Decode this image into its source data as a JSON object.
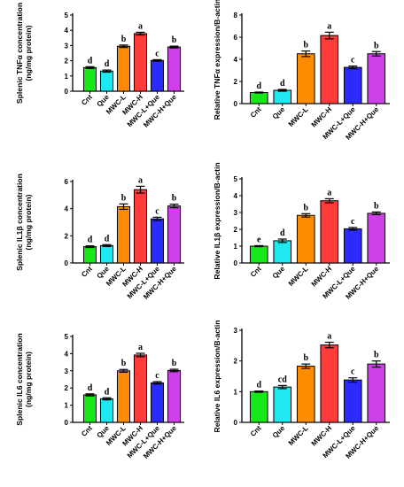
{
  "chart_data": [
    {
      "type": "bar",
      "panel": "top-left",
      "ylabel_lines": [
        "Splenic TNFα concentration",
        "(ng/mg protein)"
      ],
      "ylim": [
        0,
        5
      ],
      "yticks": [
        0,
        1,
        2,
        3,
        4,
        5
      ],
      "categories": [
        "Cnt",
        "Que",
        "MWC-L",
        "MWC-H",
        "MWC-L+Que",
        "MWC-H+Que"
      ],
      "values": [
        1.55,
        1.32,
        2.95,
        3.78,
        2.02,
        2.9
      ],
      "errors": [
        0.06,
        0.07,
        0.08,
        0.09,
        0.05,
        0.06
      ],
      "letters": [
        "d",
        "d",
        "b",
        "a",
        "c",
        "b"
      ]
    },
    {
      "type": "bar",
      "panel": "top-right",
      "ylabel_lines": [
        "Relative TNFα expression/B-actin"
      ],
      "ylim": [
        0,
        8
      ],
      "yticks": [
        0,
        2,
        4,
        6,
        8
      ],
      "categories": [
        "Cnt",
        "Que",
        "MWC-L",
        "MWC-H",
        "MWC-L+Que",
        "MWC-H+Que"
      ],
      "values": [
        1.0,
        1.2,
        4.5,
        6.15,
        3.27,
        4.5
      ],
      "errors": [
        0.04,
        0.08,
        0.25,
        0.3,
        0.12,
        0.2
      ],
      "letters": [
        "d",
        "d",
        "b",
        "a",
        "c",
        "b"
      ]
    },
    {
      "type": "bar",
      "panel": "middle-left",
      "ylabel_lines": [
        "Splenic IL1β concentration",
        "(ng/mg protein)"
      ],
      "ylim": [
        0,
        6
      ],
      "yticks": [
        0,
        2,
        4,
        6
      ],
      "categories": [
        "Cnt",
        "Que",
        "MWC-L",
        "MWC-H",
        "MWC-L+Que",
        "MWC-H+Que"
      ],
      "values": [
        1.2,
        1.28,
        4.15,
        5.4,
        3.25,
        4.2
      ],
      "errors": [
        0.06,
        0.07,
        0.2,
        0.25,
        0.12,
        0.13
      ],
      "letters": [
        "d",
        "d",
        "b",
        "a",
        "c",
        "b"
      ]
    },
    {
      "type": "bar",
      "panel": "middle-right",
      "ylabel_lines": [
        "Relative IL1β expression/B-actin"
      ],
      "ylim": [
        0,
        5
      ],
      "yticks": [
        0,
        1,
        2,
        3,
        4,
        5
      ],
      "categories": [
        "Cnt",
        "Que",
        "MWC-L",
        "MWC-H",
        "MWC-L+Que",
        "MWC-H+Que"
      ],
      "values": [
        1.0,
        1.32,
        2.83,
        3.7,
        2.03,
        2.95
      ],
      "errors": [
        0.03,
        0.1,
        0.1,
        0.12,
        0.08,
        0.08
      ],
      "letters": [
        "e",
        "d",
        "b",
        "a",
        "c",
        "b"
      ]
    },
    {
      "type": "bar",
      "panel": "bottom-left",
      "ylabel_lines": [
        "Splenic IL6 concentration",
        "(ng/mg protein)"
      ],
      "ylim": [
        0,
        5
      ],
      "yticks": [
        0,
        1,
        2,
        3,
        4,
        5
      ],
      "categories": [
        "Cnt",
        "Que",
        "MWC-L",
        "MWC-H",
        "MWC-L+Que",
        "MWC-H+Que"
      ],
      "values": [
        1.6,
        1.37,
        3.0,
        3.92,
        2.3,
        3.02
      ],
      "errors": [
        0.06,
        0.06,
        0.08,
        0.1,
        0.07,
        0.07
      ],
      "letters": [
        "d",
        "d",
        "b",
        "a",
        "c",
        "b"
      ]
    },
    {
      "type": "bar",
      "panel": "bottom-right",
      "ylabel_lines": [
        "Relative IL6 expression/B-actin"
      ],
      "ylim": [
        0,
        3
      ],
      "yticks": [
        0,
        1,
        2,
        3
      ],
      "categories": [
        "Cnt",
        "Que",
        "MWC-L",
        "MWC-H",
        "MWC-L+Que",
        "MWC-H+Que"
      ],
      "values": [
        1.0,
        1.15,
        1.83,
        2.52,
        1.38,
        1.9
      ],
      "errors": [
        0.02,
        0.05,
        0.07,
        0.09,
        0.07,
        0.1
      ],
      "letters": [
        "d",
        "cd",
        "b",
        "a",
        "c",
        "b"
      ]
    }
  ],
  "colors": [
    "#17e817",
    "#1ee8f0",
    "#ff8c00",
    "#ff3b3b",
    "#2b2bff",
    "#d040e8"
  ]
}
